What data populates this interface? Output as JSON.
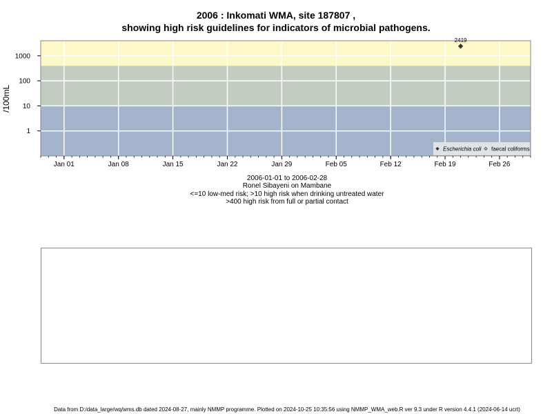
{
  "title_line1": "2006 : Inkomati WMA, site 187807 ,",
  "title_line2": "showing high risk guidelines for indicators of microbial pathogens.",
  "info": {
    "date_range": "2006-01-01 to 2006-02-28",
    "site_name": "Ronel Sibayeni on Mambane",
    "guideline1": "<=10 low-med risk; >10 high risk when drinking untreated water",
    "guideline2": ">400 high risk from full or partial contact"
  },
  "footer": "Data from D:/data_large/wq/wms.db dated 2024-08-27, mainly NMMP programme. Plotted on 2024-10-25 10:35:56 using NMMP_WMA_web.R ver 9.3 under R version 4.4.1 (2024-06-14 ucrt)",
  "chart_data": {
    "type": "scatter",
    "ylabel": "/100mL",
    "y_scale": "log",
    "ylim": [
      0.1,
      4000
    ],
    "y_ticks": [
      1,
      10,
      100,
      1000
    ],
    "xlim": [
      "2005-12-29",
      "2006-03-02"
    ],
    "x_ticks": [
      {
        "date": "2006-01-01",
        "label": "Jan 01"
      },
      {
        "date": "2006-01-08",
        "label": "Jan 08"
      },
      {
        "date": "2006-01-15",
        "label": "Jan 15"
      },
      {
        "date": "2006-01-22",
        "label": "Jan 22"
      },
      {
        "date": "2006-01-29",
        "label": "Jan 29"
      },
      {
        "date": "2006-02-05",
        "label": "Feb 05"
      },
      {
        "date": "2006-02-12",
        "label": "Feb 12"
      },
      {
        "date": "2006-02-19",
        "label": "Feb 19"
      },
      {
        "date": "2006-02-26",
        "label": "Feb 26"
      }
    ],
    "grid": true,
    "risk_bands": [
      {
        "from": 0.1,
        "to": 10,
        "color": "#a3b4cc"
      },
      {
        "from": 10,
        "to": 400,
        "color": "#c3ccc0"
      },
      {
        "from": 400,
        "to": 4000,
        "color": "#fdf8c8"
      }
    ],
    "series": [
      {
        "name": "Escherichia coli",
        "marker": "filled-diamond",
        "color": "#333333",
        "points": [
          {
            "date": "2006-02-21",
            "value": 2419,
            "label": "2419"
          }
        ]
      },
      {
        "name": "faecal coliforms",
        "marker": "open-diamond",
        "color": "#333333",
        "points": []
      }
    ],
    "legend_position": "bottom-right"
  }
}
